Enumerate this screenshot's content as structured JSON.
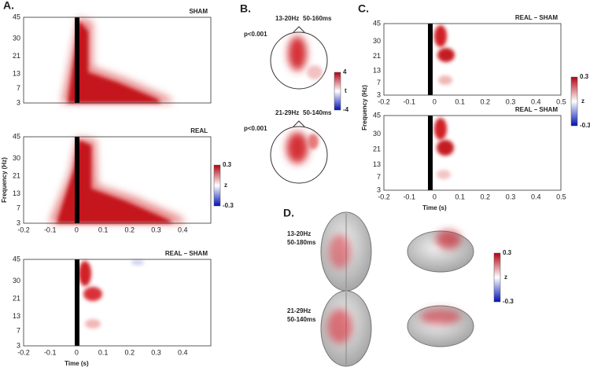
{
  "panels": {
    "A": {
      "label": "A.",
      "titles": [
        "SHAM",
        "REAL",
        "REAL – SHAM"
      ],
      "ylabel": "Frequency (Hz)",
      "xlabel": "Time (s)",
      "xticks": [
        "-0.2",
        "-0.1",
        "0",
        "0.1",
        "0.2",
        "0.3",
        "0.4"
      ],
      "yticks": [
        "45",
        "30",
        "21",
        "13",
        "7",
        "3"
      ],
      "colorbar": {
        "max": "0.3",
        "label": "z",
        "min": "-0.3"
      }
    },
    "B": {
      "label": "B.",
      "maps": [
        {
          "band": "13-20Hz",
          "window": "50-160ms",
          "p": "p<0.001"
        },
        {
          "band": "21-29Hz",
          "window": "50-140ms",
          "p": "p<0.001"
        }
      ],
      "colorbar": {
        "max": "4",
        "label": "t",
        "min": "-4"
      }
    },
    "C": {
      "label": "C.",
      "titles": [
        "REAL – SHAM",
        "REAL – SHAM"
      ],
      "ylabel": "Frequency (Hz)",
      "xlabel": "Time (s)",
      "xticks": [
        "-0.2",
        "-0.1",
        "0",
        "0.1",
        "0.2",
        "0.3",
        "0.4",
        "0.5"
      ],
      "yticks": [
        "45",
        "30",
        "21",
        "13",
        "7",
        "3"
      ],
      "colorbar": {
        "max": "0.3",
        "label": "z",
        "min": "-0.3"
      }
    },
    "D": {
      "label": "D.",
      "rows": [
        {
          "band": "13-20Hz",
          "window": "50-180ms"
        },
        {
          "band": "21-29Hz",
          "window": "50-140ms"
        }
      ],
      "colorbar": {
        "max": "0.3",
        "label": "z",
        "min": "-0.3"
      }
    }
  }
}
